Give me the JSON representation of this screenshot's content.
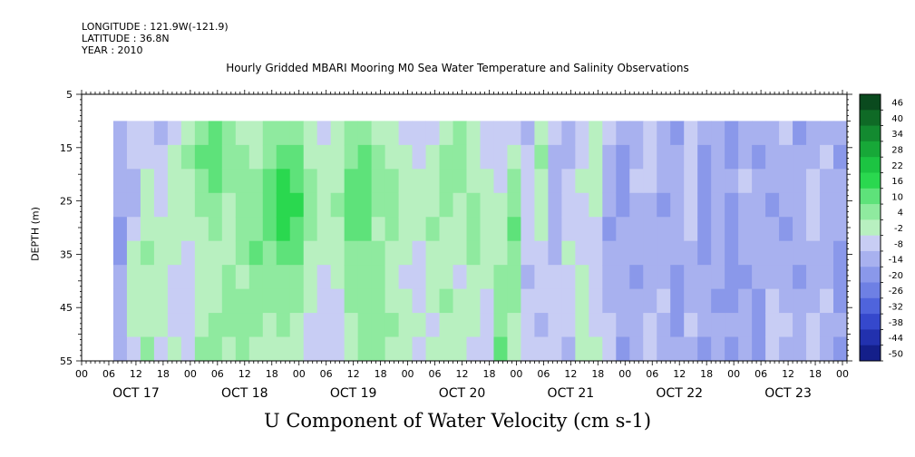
{
  "header": {
    "longitude": "LONGITUDE : 121.9W(-121.9)",
    "latitude": "LATITUDE : 36.8N",
    "year": "YEAR : 2010"
  },
  "chart_data": {
    "type": "heatmap",
    "title": "Hourly Gridded MBARI Mooring M0 Sea Water Temperature and Salinity Observations",
    "xlabel": "U Component of Water Velocity (cm s-1)",
    "ylabel": "DEPTH (m)",
    "y_ticks": [
      5,
      15,
      25,
      35,
      45,
      55
    ],
    "y_range": [
      5,
      55
    ],
    "y_data_range": [
      10,
      55
    ],
    "x_hour_labels": [
      "00",
      "06",
      "12",
      "18"
    ],
    "days": [
      "OCT 17",
      "OCT 18",
      "OCT 19",
      "OCT 20",
      "OCT 21",
      "OCT 22",
      "OCT 23"
    ],
    "x_range_hours": [
      0,
      169
    ],
    "data_start_hour": 7,
    "colorbar": {
      "levels": [
        48,
        46,
        40,
        34,
        28,
        22,
        16,
        10,
        4,
        -2,
        -8,
        -14,
        -20,
        -26,
        -32,
        -38,
        -44,
        -50
      ],
      "labels": [
        "46",
        "40",
        "34",
        "28",
        "22",
        "16",
        "10",
        "4",
        "-2",
        "-8",
        "-14",
        "-20",
        "-26",
        "-32",
        "-38",
        "-44",
        "-50"
      ],
      "colors": [
        "#0a4a1e",
        "#0f6a26",
        "#138a30",
        "#17a838",
        "#1cc442",
        "#2ad84f",
        "#5ee27a",
        "#8fea9f",
        "#b8f0c0",
        "#c8cdf4",
        "#a8b1ef",
        "#8a98ea",
        "#6e80e4",
        "#4f64dc",
        "#3548cc",
        "#2231ae",
        "#141f8a"
      ]
    },
    "columns": [
      {
        "hour": 7,
        "profile": [
          -8,
          -8,
          -10,
          -12,
          -14,
          -14,
          -12,
          -10,
          -8,
          -8
        ]
      },
      {
        "hour": 10,
        "profile": [
          -6,
          -6,
          -8,
          -8,
          -4,
          2,
          4,
          2,
          0,
          -2
        ]
      },
      {
        "hour": 13,
        "profile": [
          -4,
          -2,
          0,
          2,
          4,
          6,
          4,
          2,
          4,
          6
        ]
      },
      {
        "hour": 16,
        "profile": [
          -8,
          -6,
          -4,
          -2,
          0,
          2,
          4,
          2,
          0,
          -2
        ]
      },
      {
        "hour": 19,
        "profile": [
          -2,
          0,
          2,
          4,
          2,
          0,
          -2,
          -4,
          -2,
          0
        ]
      },
      {
        "hour": 22,
        "profile": [
          4,
          6,
          4,
          2,
          0,
          -2,
          -4,
          -6,
          -4,
          -2
        ]
      },
      {
        "hour": 25,
        "profile": [
          10,
          12,
          10,
          6,
          4,
          2,
          0,
          2,
          4,
          6
        ]
      },
      {
        "hour": 28,
        "profile": [
          14,
          16,
          14,
          10,
          6,
          4,
          2,
          4,
          6,
          8
        ]
      },
      {
        "hour": 31,
        "profile": [
          6,
          8,
          6,
          4,
          2,
          4,
          6,
          8,
          6,
          4
        ]
      },
      {
        "hour": 34,
        "profile": [
          4,
          6,
          8,
          10,
          8,
          6,
          4,
          6,
          8,
          6
        ]
      },
      {
        "hour": 37,
        "profile": [
          2,
          4,
          6,
          8,
          10,
          12,
          10,
          8,
          6,
          4
        ]
      },
      {
        "hour": 40,
        "profile": [
          6,
          8,
          12,
          14,
          12,
          10,
          8,
          6,
          4,
          2
        ]
      },
      {
        "hour": 43,
        "profile": [
          10,
          14,
          18,
          20,
          18,
          14,
          10,
          8,
          6,
          4
        ]
      },
      {
        "hour": 46,
        "profile": [
          8,
          12,
          16,
          18,
          16,
          12,
          8,
          6,
          4,
          2
        ]
      },
      {
        "hour": 49,
        "profile": [
          2,
          4,
          6,
          8,
          6,
          4,
          2,
          0,
          -2,
          -4
        ]
      },
      {
        "hour": 52,
        "profile": [
          -2,
          0,
          2,
          4,
          2,
          0,
          -2,
          -4,
          -6,
          -4
        ]
      },
      {
        "hour": 55,
        "profile": [
          0,
          2,
          4,
          6,
          4,
          2,
          0,
          -2,
          -4,
          -2
        ]
      },
      {
        "hour": 58,
        "profile": [
          8,
          10,
          12,
          14,
          12,
          10,
          8,
          6,
          4,
          2
        ]
      },
      {
        "hour": 61,
        "profile": [
          10,
          14,
          16,
          14,
          12,
          10,
          8,
          6,
          8,
          10
        ]
      },
      {
        "hour": 64,
        "profile": [
          4,
          6,
          8,
          6,
          4,
          6,
          8,
          10,
          8,
          6
        ]
      },
      {
        "hour": 67,
        "profile": [
          2,
          4,
          6,
          8,
          6,
          4,
          2,
          4,
          6,
          4
        ]
      },
      {
        "hour": 70,
        "profile": [
          -2,
          0,
          2,
          4,
          2,
          0,
          -2,
          0,
          2,
          0
        ]
      },
      {
        "hour": 73,
        "profile": [
          -4,
          -2,
          0,
          2,
          0,
          -2,
          -4,
          -2,
          0,
          -2
        ]
      },
      {
        "hour": 76,
        "profile": [
          -2,
          0,
          2,
          4,
          6,
          4,
          2,
          0,
          -2,
          0
        ]
      },
      {
        "hour": 79,
        "profile": [
          4,
          6,
          8,
          6,
          4,
          2,
          4,
          6,
          4,
          2
        ]
      },
      {
        "hour": 82,
        "profile": [
          6,
          8,
          6,
          4,
          2,
          0,
          -2,
          0,
          2,
          4
        ]
      },
      {
        "hour": 85,
        "profile": [
          0,
          2,
          4,
          6,
          8,
          6,
          4,
          2,
          0,
          -2
        ]
      },
      {
        "hour": 88,
        "profile": [
          -4,
          -2,
          0,
          2,
          4,
          2,
          0,
          -2,
          -4,
          -2
        ]
      },
      {
        "hour": 91,
        "profile": [
          -6,
          -4,
          -2,
          0,
          2,
          4,
          6,
          8,
          10,
          12
        ]
      },
      {
        "hour": 94,
        "profile": [
          -2,
          2,
          6,
          10,
          12,
          10,
          8,
          6,
          4,
          2
        ]
      },
      {
        "hour": 97,
        "profile": [
          -8,
          -6,
          -4,
          -2,
          -4,
          -6,
          -8,
          -6,
          -4,
          -6
        ]
      },
      {
        "hour": 100,
        "profile": [
          4,
          6,
          4,
          2,
          0,
          -2,
          -4,
          -6,
          -8,
          -6
        ]
      },
      {
        "hour": 103,
        "profile": [
          -6,
          -8,
          -10,
          -12,
          -10,
          -8,
          -6,
          -4,
          -2,
          -4
        ]
      },
      {
        "hour": 106,
        "profile": [
          -10,
          -8,
          -6,
          -4,
          -2,
          0,
          -2,
          -4,
          -6,
          -8
        ]
      },
      {
        "hour": 109,
        "profile": [
          -4,
          -2,
          0,
          -2,
          -4,
          -2,
          0,
          2,
          4,
          2
        ]
      },
      {
        "hour": 112,
        "profile": [
          2,
          4,
          2,
          0,
          -2,
          -4,
          -6,
          -4,
          -2,
          0
        ]
      },
      {
        "hour": 115,
        "profile": [
          -6,
          -8,
          -10,
          -12,
          -14,
          -12,
          -10,
          -8,
          -6,
          -4
        ]
      },
      {
        "hour": 118,
        "profile": [
          -12,
          -14,
          -16,
          -14,
          -12,
          -10,
          -8,
          -10,
          -12,
          -14
        ]
      },
      {
        "hour": 121,
        "profile": [
          -10,
          -8,
          -6,
          -8,
          -10,
          -12,
          -14,
          -12,
          -10,
          -8
        ]
      },
      {
        "hour": 124,
        "profile": [
          -6,
          -4,
          -6,
          -8,
          -10,
          -12,
          -10,
          -8,
          -6,
          -4
        ]
      },
      {
        "hour": 127,
        "profile": [
          -8,
          -10,
          -12,
          -14,
          -12,
          -10,
          -8,
          -6,
          -8,
          -10
        ]
      },
      {
        "hour": 130,
        "profile": [
          -14,
          -12,
          -10,
          -8,
          -10,
          -12,
          -14,
          -16,
          -14,
          -12
        ]
      },
      {
        "hour": 133,
        "profile": [
          -6,
          -4,
          -2,
          -4,
          -6,
          -8,
          -10,
          -8,
          -6,
          -8
        ]
      },
      {
        "hour": 136,
        "profile": [
          -12,
          -14,
          -16,
          -18,
          -16,
          -14,
          -12,
          -10,
          -12,
          -14
        ]
      },
      {
        "hour": 139,
        "profile": [
          -8,
          -10,
          -12,
          -10,
          -8,
          -10,
          -12,
          -14,
          -12,
          -10
        ]
      },
      {
        "hour": 142,
        "profile": [
          -16,
          -14,
          -12,
          -14,
          -16,
          -18,
          -16,
          -14,
          -12,
          -14
        ]
      },
      {
        "hour": 145,
        "profile": [
          -10,
          -8,
          -6,
          -8,
          -10,
          -12,
          -14,
          -12,
          -10,
          -8
        ]
      },
      {
        "hour": 148,
        "profile": [
          -12,
          -14,
          -12,
          -10,
          -8,
          -10,
          -12,
          -14,
          -16,
          -14
        ]
      },
      {
        "hour": 151,
        "profile": [
          -8,
          -10,
          -12,
          -14,
          -12,
          -10,
          -8,
          -6,
          -4,
          -6
        ]
      },
      {
        "hour": 154,
        "profile": [
          -6,
          -8,
          -10,
          -12,
          -14,
          -12,
          -10,
          -8,
          -6,
          -8
        ]
      },
      {
        "hour": 157,
        "profile": [
          -14,
          -12,
          -10,
          -8,
          -10,
          -12,
          -14,
          -12,
          -10,
          -12
        ]
      },
      {
        "hour": 160,
        "profile": [
          -10,
          -8,
          -6,
          -4,
          -6,
          -8,
          -10,
          -8,
          -6,
          -4
        ]
      },
      {
        "hour": 163,
        "profile": [
          -8,
          -6,
          -8,
          -10,
          -12,
          -10,
          -8,
          -6,
          -8,
          -10
        ]
      },
      {
        "hour": 166,
        "profile": [
          -12,
          -14,
          -12,
          -10,
          -12,
          -14,
          -16,
          -14,
          -12,
          -14
        ]
      }
    ]
  }
}
